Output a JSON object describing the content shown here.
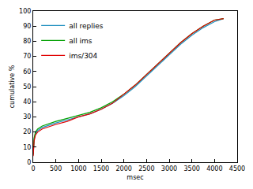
{
  "chart_data": {
    "type": "line",
    "x_label": "msec",
    "y_label": "cumulative %",
    "x": [
      0,
      20,
      50,
      100,
      200,
      300,
      500,
      750,
      1000,
      1250,
      1500,
      1750,
      2000,
      2250,
      2500,
      2750,
      3000,
      3250,
      3500,
      3750,
      4000,
      4200
    ],
    "series": [
      {
        "name": "all replies",
        "color": "#1f8fbf",
        "values": [
          5,
          15,
          19,
          21,
          23,
          24,
          26,
          28,
          30,
          32,
          35,
          39,
          44,
          50,
          57,
          64,
          71,
          78,
          84,
          89,
          93,
          95
        ]
      },
      {
        "name": "all ims",
        "color": "#00a000",
        "values": [
          5,
          16,
          20,
          22,
          24,
          25,
          27,
          29,
          31,
          33,
          36,
          40,
          45,
          51,
          58,
          65,
          72,
          79,
          85,
          90,
          94,
          95
        ]
      },
      {
        "name": "ims/304",
        "color": "#e00000",
        "values": [
          4,
          14,
          18,
          20,
          22,
          23,
          25,
          27,
          30,
          32,
          35,
          39,
          45,
          51,
          58,
          65,
          72,
          79,
          85,
          90,
          94,
          95
        ]
      }
    ],
    "xlim": [
      0,
      4500
    ],
    "xticks": [
      0,
      500,
      1000,
      1500,
      2000,
      2500,
      3000,
      3500,
      4000,
      4500
    ],
    "ylim": [
      0,
      100
    ],
    "yticks": [
      0,
      10,
      20,
      30,
      40,
      50,
      60,
      70,
      80,
      90,
      100
    ],
    "grid": false,
    "legend": "top-left"
  }
}
